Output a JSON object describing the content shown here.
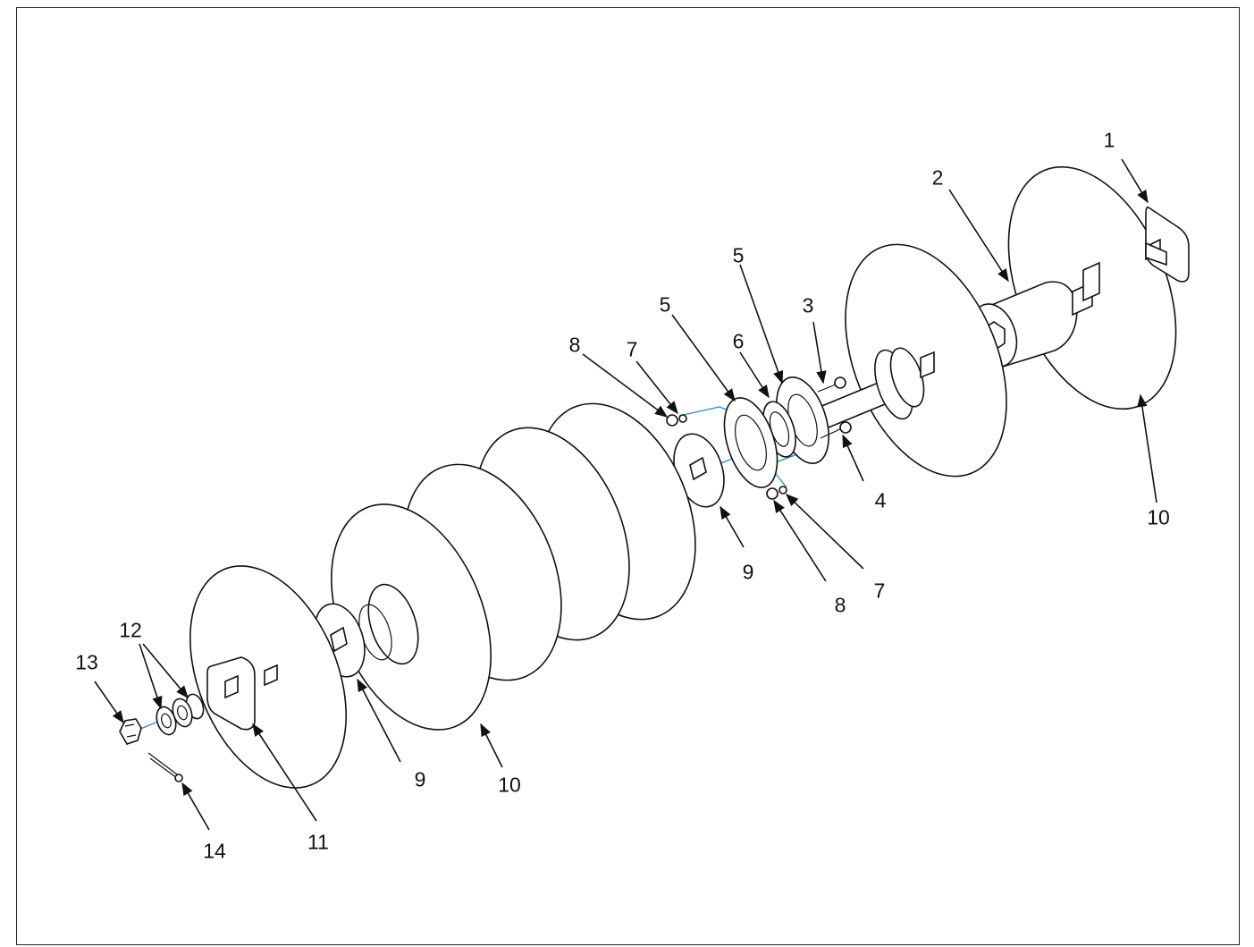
{
  "colors": {
    "linework": "#111111",
    "assembly_axis": "#2d8fd5",
    "frame": "#222222",
    "background": "#ffffff"
  },
  "callouts": [
    {
      "id": "c1",
      "text": "1"
    },
    {
      "id": "c2",
      "text": "2"
    },
    {
      "id": "c3",
      "text": "3"
    },
    {
      "id": "c4",
      "text": "4"
    },
    {
      "id": "c5a",
      "text": "5"
    },
    {
      "id": "c5b",
      "text": "5"
    },
    {
      "id": "c6",
      "text": "6"
    },
    {
      "id": "c7a",
      "text": "7"
    },
    {
      "id": "c7b",
      "text": "7"
    },
    {
      "id": "c8a",
      "text": "8"
    },
    {
      "id": "c8b",
      "text": "8"
    },
    {
      "id": "c9a",
      "text": "9"
    },
    {
      "id": "c9b",
      "text": "9"
    },
    {
      "id": "c10a",
      "text": "10"
    },
    {
      "id": "c10b",
      "text": "10"
    },
    {
      "id": "c11",
      "text": "11"
    },
    {
      "id": "c12",
      "text": "12"
    },
    {
      "id": "c13",
      "text": "13"
    },
    {
      "id": "c14",
      "text": "14"
    }
  ]
}
